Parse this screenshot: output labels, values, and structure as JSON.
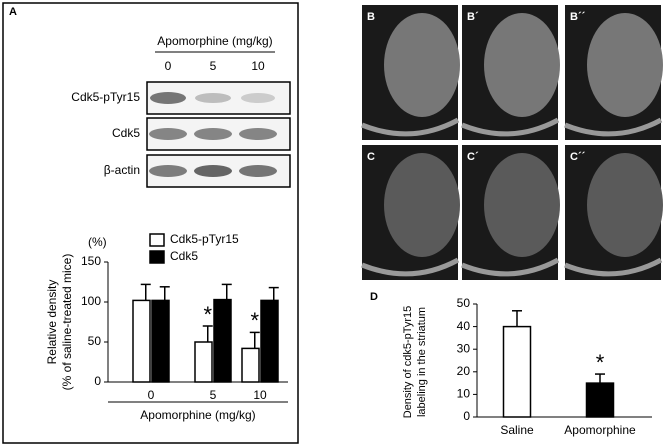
{
  "panel_labels": [
    "A",
    "B",
    "B´",
    "B´´",
    "C",
    "C´",
    "C´´",
    "D"
  ],
  "blot": {
    "header": "Apomorphine (mg/kg)",
    "lanes": [
      "0",
      "5",
      "10"
    ],
    "rows": [
      "Cdk5-pTyr15",
      "Cdk5",
      "β-actin"
    ]
  },
  "chart_data": [
    {
      "type": "bar",
      "y_unit": "(%)",
      "ylabel": [
        "Relative density",
        "(% of saline-treated mice)"
      ],
      "xlabel": "Apomorphine (mg/kg)",
      "categories": [
        "0",
        "5",
        "10"
      ],
      "series": [
        {
          "name": "Cdk5-pTyr15",
          "color": "#ffffff",
          "values": [
            102,
            50,
            42
          ],
          "errors": [
            20,
            20,
            20
          ]
        },
        {
          "name": "Cdk5",
          "color": "#000000",
          "values": [
            102,
            103,
            102
          ],
          "errors": [
            17,
            19,
            16
          ]
        }
      ],
      "annotations": [
        {
          "text": "*",
          "category": "5"
        },
        {
          "text": "*",
          "category": "10"
        }
      ],
      "ylim": [
        0,
        150
      ],
      "yticks": [
        0,
        50,
        100,
        150
      ]
    },
    {
      "type": "bar",
      "ylabel": [
        "Density of cdk5-pTyr15",
        "labeling in the striatum"
      ],
      "categories": [
        "Saline",
        "Apomorphine"
      ],
      "series": [
        {
          "colors": [
            "#ffffff",
            "#000000"
          ],
          "values": [
            40,
            15
          ],
          "errors": [
            7,
            4
          ]
        }
      ],
      "annotations": [
        {
          "text": "*",
          "category": "Apomorphine"
        }
      ],
      "ylim": [
        0,
        50
      ],
      "yticks": [
        0,
        10,
        20,
        30,
        40,
        50
      ]
    }
  ]
}
